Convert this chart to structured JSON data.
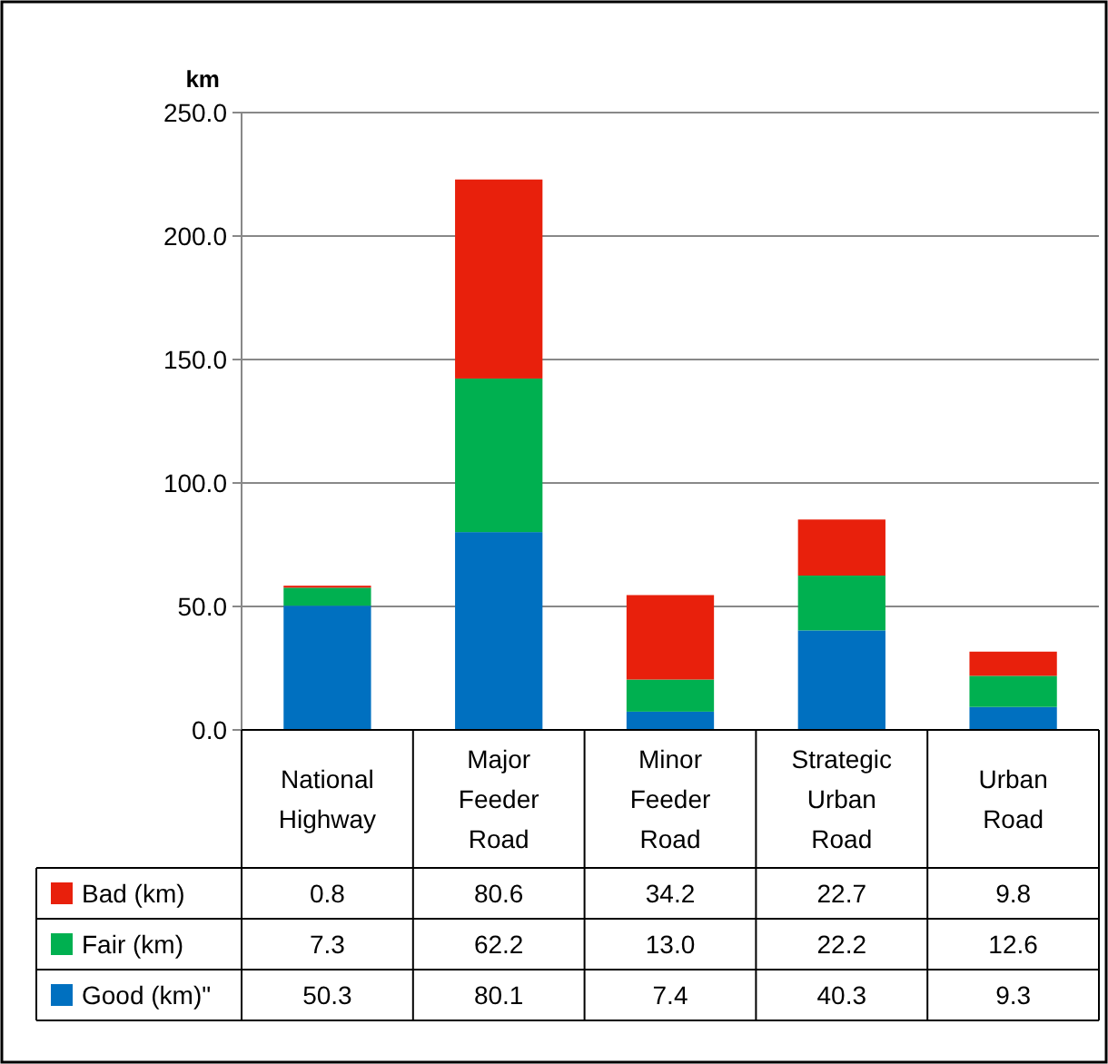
{
  "chart_data": {
    "type": "bar",
    "stacked": true,
    "ylabel": "km",
    "categories": [
      "National Highway",
      "Major Feeder Road",
      "Minor Feeder Road",
      "Strategic Urban Road",
      "Urban Road"
    ],
    "series": [
      {
        "name": "Good (km)\"",
        "color": "#0070c0",
        "values": [
          50.3,
          80.1,
          7.4,
          40.3,
          9.3
        ],
        "value_labels": [
          "50.3",
          "80.1",
          "7.4",
          "40.3",
          "9.3"
        ]
      },
      {
        "name": "Fair (km)",
        "color": "#00b050",
        "values": [
          7.3,
          62.2,
          13.0,
          22.2,
          12.6
        ],
        "value_labels": [
          "7.3",
          "62.2",
          "13.0",
          "22.2",
          "12.6"
        ]
      },
      {
        "name": "Bad (km)",
        "color": "#e8200c",
        "values": [
          0.8,
          80.6,
          34.2,
          22.7,
          9.8
        ],
        "value_labels": [
          "0.8",
          "80.6",
          "34.2",
          "22.7",
          "9.8"
        ]
      }
    ],
    "ylim": [
      0,
      250
    ],
    "yticks": [
      {
        "value": 0,
        "label": "0.0"
      },
      {
        "value": 50,
        "label": "50.0"
      },
      {
        "value": 100,
        "label": "100.0"
      },
      {
        "value": 150,
        "label": "150.0"
      },
      {
        "value": 200,
        "label": "200.0"
      },
      {
        "value": 250,
        "label": "250.0"
      }
    ],
    "grid": "y",
    "legend": "bottom left"
  }
}
